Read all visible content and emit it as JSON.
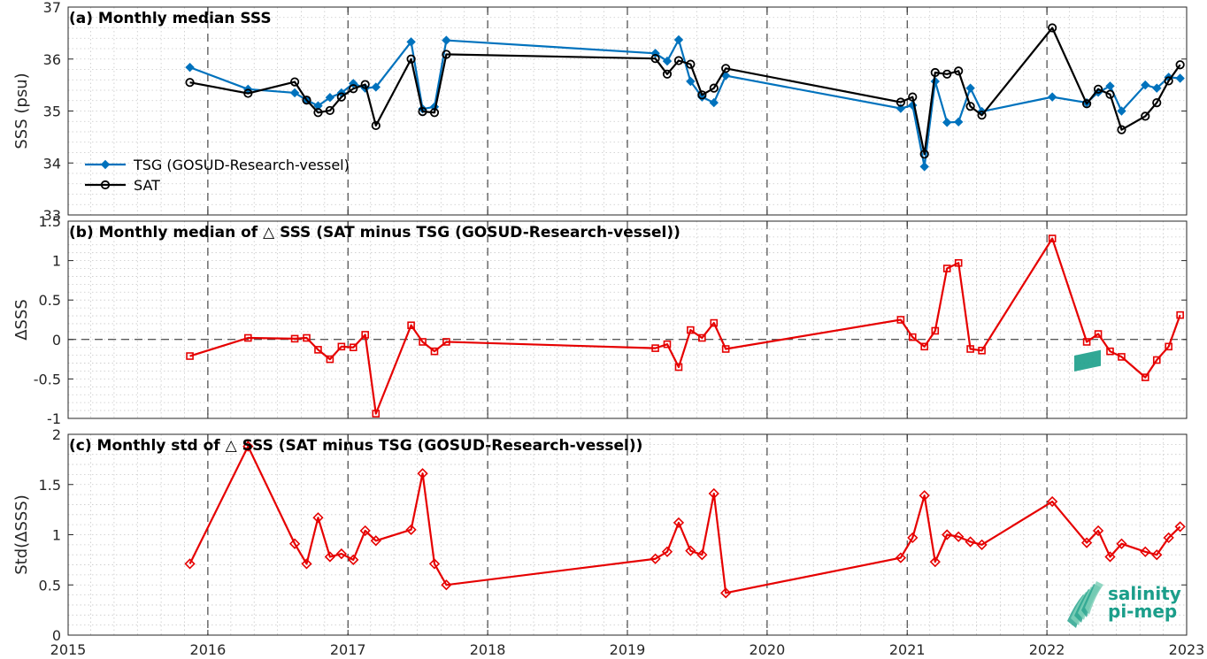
{
  "logo": {
    "line1": "salinity",
    "line2": "pi-mep"
  },
  "x_axis": {
    "range": [
      "2015-01-01",
      "2023-01-01"
    ],
    "tick_labels": [
      "2015",
      "2016",
      "2017",
      "2018",
      "2019",
      "2020",
      "2021",
      "2022",
      "2023"
    ],
    "major_dashed_gridlines": [
      "2016-01-01",
      "2017-01-01",
      "2018-01-01",
      "2019-01-01",
      "2020-01-01",
      "2021-01-01",
      "2022-01-01"
    ],
    "minor_grid": true
  },
  "colors": {
    "tsg": "#0072bd",
    "sat": "#000000",
    "diff": "#e60000",
    "logo": "#1b9e8a"
  },
  "chart_data": [
    {
      "type": "line",
      "title": "(a) Monthly median SSS",
      "ylabel": "SSS (psu)",
      "ylim": [
        33,
        37
      ],
      "yticks": [
        33,
        34,
        35,
        36,
        37
      ],
      "legend": "bottom-left",
      "series": [
        {
          "name": "TSG (GOSUD-Research-vessel)",
          "marker": "filled-diamond",
          "color": "#0072bd",
          "points": [
            [
              "2015-11-15",
              35.84
            ],
            [
              "2016-04-15",
              35.42
            ],
            [
              "2016-08-15",
              35.35
            ],
            [
              "2016-09-15",
              35.21
            ],
            [
              "2016-10-15",
              35.1
            ],
            [
              "2016-11-15",
              35.26
            ],
            [
              "2016-12-15",
              35.35
            ],
            [
              "2017-01-15",
              35.53
            ],
            [
              "2017-02-15",
              35.44
            ],
            [
              "2017-03-15",
              35.46
            ],
            [
              "2017-06-15",
              36.33
            ],
            [
              "2017-07-15",
              35.04
            ],
            [
              "2017-08-15",
              35.08
            ],
            [
              "2017-09-15",
              36.36
            ],
            [
              "2019-03-15",
              36.11
            ],
            [
              "2019-04-15",
              35.96
            ],
            [
              "2019-05-15",
              36.37
            ],
            [
              "2019-06-15",
              35.57
            ],
            [
              "2019-07-15",
              35.27
            ],
            [
              "2019-08-15",
              35.16
            ],
            [
              "2019-09-15",
              35.68
            ],
            [
              "2020-12-15",
              35.05
            ],
            [
              "2021-01-15",
              35.11
            ],
            [
              "2021-02-15",
              33.93
            ],
            [
              "2021-03-15",
              35.57
            ],
            [
              "2021-04-15",
              34.78
            ],
            [
              "2021-05-15",
              34.79
            ],
            [
              "2021-06-15",
              35.44
            ],
            [
              "2021-07-15",
              34.99
            ],
            [
              "2022-01-15",
              35.27
            ],
            [
              "2022-04-15",
              35.16
            ],
            [
              "2022-05-15",
              35.36
            ],
            [
              "2022-06-15",
              35.48
            ],
            [
              "2022-07-15",
              35.0
            ],
            [
              "2022-09-15",
              35.5
            ],
            [
              "2022-10-15",
              35.44
            ],
            [
              "2022-11-15",
              35.65
            ],
            [
              "2022-12-15",
              35.63
            ]
          ]
        },
        {
          "name": "SAT",
          "marker": "open-circle",
          "color": "#000000",
          "points": [
            [
              "2015-11-15",
              35.55
            ],
            [
              "2016-04-15",
              35.34
            ],
            [
              "2016-08-15",
              35.56
            ],
            [
              "2016-09-15",
              35.21
            ],
            [
              "2016-10-15",
              34.97
            ],
            [
              "2016-11-15",
              35.01
            ],
            [
              "2016-12-15",
              35.27
            ],
            [
              "2017-01-15",
              35.43
            ],
            [
              "2017-02-15",
              35.51
            ],
            [
              "2017-03-15",
              34.72
            ],
            [
              "2017-06-15",
              36.0
            ],
            [
              "2017-07-15",
              34.99
            ],
            [
              "2017-08-15",
              34.97
            ],
            [
              "2017-09-15",
              36.09
            ],
            [
              "2019-03-15",
              36.01
            ],
            [
              "2019-04-15",
              35.71
            ],
            [
              "2019-05-15",
              35.97
            ],
            [
              "2019-06-15",
              35.9
            ],
            [
              "2019-07-15",
              35.31
            ],
            [
              "2019-08-15",
              35.44
            ],
            [
              "2019-09-15",
              35.82
            ],
            [
              "2020-12-15",
              35.17
            ],
            [
              "2021-01-15",
              35.27
            ],
            [
              "2021-02-15",
              34.17
            ],
            [
              "2021-03-15",
              35.74
            ],
            [
              "2021-04-15",
              35.71
            ],
            [
              "2021-05-15",
              35.77
            ],
            [
              "2021-06-15",
              35.09
            ],
            [
              "2021-07-15",
              34.92
            ],
            [
              "2022-01-15",
              36.6
            ],
            [
              "2022-04-15",
              35.14
            ],
            [
              "2022-05-15",
              35.42
            ],
            [
              "2022-06-15",
              35.32
            ],
            [
              "2022-07-15",
              34.64
            ],
            [
              "2022-09-15",
              34.9
            ],
            [
              "2022-10-15",
              35.16
            ],
            [
              "2022-11-15",
              35.58
            ],
            [
              "2022-12-15",
              35.89
            ]
          ]
        }
      ]
    },
    {
      "type": "line",
      "title": "(b) Monthly median of △ SSS (SAT minus TSG (GOSUD-Research-vessel))",
      "ylabel": "ΔSSS",
      "ylim": [
        -1,
        1.5
      ],
      "yticks": [
        -1,
        -0.5,
        0,
        0.5,
        1,
        1.5
      ],
      "ytick_labels": [
        "-1",
        "-0.5",
        "0",
        "0.5",
        "1",
        "1.5"
      ],
      "reference_line": 0,
      "series": [
        {
          "marker": "open-square",
          "color": "#e60000",
          "points": [
            [
              "2015-11-15",
              -0.21
            ],
            [
              "2016-04-15",
              0.02
            ],
            [
              "2016-08-15",
              0.01
            ],
            [
              "2016-09-15",
              0.02
            ],
            [
              "2016-10-15",
              -0.13
            ],
            [
              "2016-11-15",
              -0.25
            ],
            [
              "2016-12-15",
              -0.09
            ],
            [
              "2017-01-15",
              -0.1
            ],
            [
              "2017-02-15",
              0.06
            ],
            [
              "2017-03-15",
              -0.94
            ],
            [
              "2017-06-15",
              0.18
            ],
            [
              "2017-07-15",
              -0.03
            ],
            [
              "2017-08-15",
              -0.15
            ],
            [
              "2017-09-15",
              -0.03
            ],
            [
              "2019-03-15",
              -0.11
            ],
            [
              "2019-04-15",
              -0.06
            ],
            [
              "2019-05-15",
              -0.35
            ],
            [
              "2019-06-15",
              0.12
            ],
            [
              "2019-07-15",
              0.02
            ],
            [
              "2019-08-15",
              0.21
            ],
            [
              "2019-09-15",
              -0.12
            ],
            [
              "2020-12-15",
              0.25
            ],
            [
              "2021-01-15",
              0.03
            ],
            [
              "2021-02-15",
              -0.09
            ],
            [
              "2021-03-15",
              0.11
            ],
            [
              "2021-04-15",
              0.9
            ],
            [
              "2021-05-15",
              0.97
            ],
            [
              "2021-06-15",
              -0.12
            ],
            [
              "2021-07-15",
              -0.14
            ],
            [
              "2022-01-15",
              1.28
            ],
            [
              "2022-04-15",
              -0.03
            ],
            [
              "2022-05-15",
              0.07
            ],
            [
              "2022-06-15",
              -0.15
            ],
            [
              "2022-07-15",
              -0.22
            ],
            [
              "2022-09-15",
              -0.48
            ],
            [
              "2022-10-15",
              -0.26
            ],
            [
              "2022-11-15",
              -0.09
            ],
            [
              "2022-12-15",
              0.31
            ]
          ]
        }
      ]
    },
    {
      "type": "line",
      "title": "(c) Monthly std of △ SSS (SAT minus TSG (GOSUD-Research-vessel))",
      "ylabel": "Std(ΔSSS)",
      "ylim": [
        0,
        2
      ],
      "yticks": [
        0,
        0.5,
        1,
        1.5,
        2
      ],
      "ytick_labels": [
        "0",
        "0.5",
        "1",
        "1.5",
        "2"
      ],
      "series": [
        {
          "marker": "open-diamond",
          "color": "#e60000",
          "points": [
            [
              "2015-11-15",
              0.71
            ],
            [
              "2016-04-15",
              1.88
            ],
            [
              "2016-08-15",
              0.91
            ],
            [
              "2016-09-15",
              0.71
            ],
            [
              "2016-10-15",
              1.17
            ],
            [
              "2016-11-15",
              0.78
            ],
            [
              "2016-12-15",
              0.81
            ],
            [
              "2017-01-15",
              0.75
            ],
            [
              "2017-02-15",
              1.04
            ],
            [
              "2017-03-15",
              0.94
            ],
            [
              "2017-06-15",
              1.05
            ],
            [
              "2017-07-15",
              1.61
            ],
            [
              "2017-08-15",
              0.71
            ],
            [
              "2017-09-15",
              0.5
            ],
            [
              "2019-03-15",
              0.76
            ],
            [
              "2019-04-15",
              0.83
            ],
            [
              "2019-05-15",
              1.12
            ],
            [
              "2019-06-15",
              0.84
            ],
            [
              "2019-07-15",
              0.8
            ],
            [
              "2019-08-15",
              1.41
            ],
            [
              "2019-09-15",
              0.42
            ],
            [
              "2020-12-15",
              0.77
            ],
            [
              "2021-01-15",
              0.97
            ],
            [
              "2021-02-15",
              1.39
            ],
            [
              "2021-03-15",
              0.73
            ],
            [
              "2021-04-15",
              1.0
            ],
            [
              "2021-05-15",
              0.98
            ],
            [
              "2021-06-15",
              0.93
            ],
            [
              "2021-07-15",
              0.9
            ],
            [
              "2022-01-15",
              1.33
            ],
            [
              "2022-04-15",
              0.92
            ],
            [
              "2022-05-15",
              1.04
            ],
            [
              "2022-06-15",
              0.78
            ],
            [
              "2022-07-15",
              0.91
            ],
            [
              "2022-09-15",
              0.83
            ],
            [
              "2022-10-15",
              0.8
            ],
            [
              "2022-11-15",
              0.97
            ],
            [
              "2022-12-15",
              1.08
            ]
          ]
        }
      ]
    }
  ]
}
